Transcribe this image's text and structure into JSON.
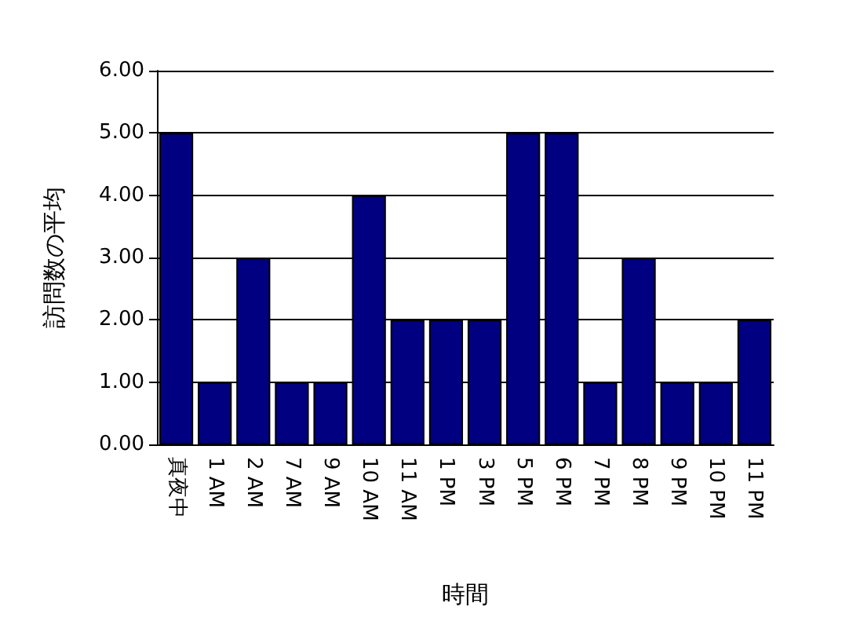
{
  "chart_data": {
    "type": "bar",
    "xlabel": "時間",
    "ylabel": "訪問数の平均",
    "categories": [
      "真夜中",
      "1 AM",
      "2 AM",
      "7 AM",
      "9 AM",
      "10 AM",
      "11 AM",
      "1 PM",
      "3 PM",
      "5 PM",
      "6 PM",
      "7 PM",
      "8 PM",
      "9 PM",
      "10 PM",
      "11 PM"
    ],
    "values": [
      5,
      1,
      3,
      1,
      1,
      4,
      2,
      2,
      2,
      5,
      5,
      1,
      3,
      1,
      1,
      2
    ],
    "color": "#000080",
    "ylim": [
      0,
      6
    ],
    "yticks": [
      {
        "value": 0,
        "label": "0.00"
      },
      {
        "value": 1,
        "label": "1.00"
      },
      {
        "value": 2,
        "label": "2.00"
      },
      {
        "value": 3,
        "label": "3.00"
      },
      {
        "value": 4,
        "label": "4.00"
      },
      {
        "value": 5,
        "label": "5.00"
      },
      {
        "value": 6,
        "label": "6.00"
      }
    ],
    "grid": "y"
  }
}
